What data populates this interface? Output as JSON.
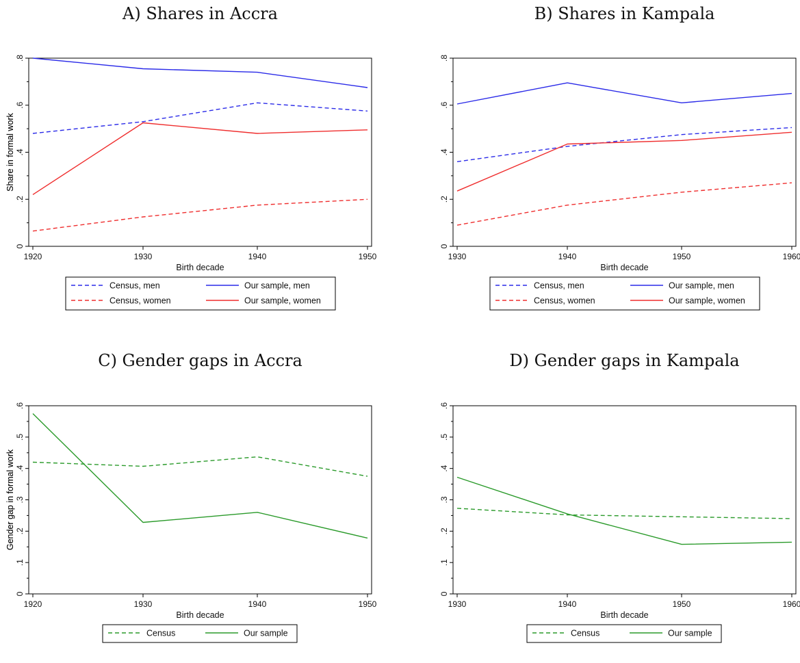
{
  "chart_data": [
    {
      "panel": "A",
      "type": "line",
      "title": "A) Shares in Accra",
      "xlabel": "Birth decade",
      "ylabel": "Share in formal work",
      "x": [
        1920,
        1930,
        1940,
        1950
      ],
      "x_ticks": [
        "1920",
        "1930",
        "1940",
        "1950"
      ],
      "xlim": [
        1920,
        1950
      ],
      "ylim": [
        0,
        0.8
      ],
      "y_ticks": [
        {
          "value": 0,
          "label": "0"
        },
        {
          "value": 0.2,
          "label": ".2"
        },
        {
          "value": 0.4,
          "label": ".4"
        },
        {
          "value": 0.6,
          "label": ".6"
        },
        {
          "value": 0.8,
          "label": ".8"
        }
      ],
      "grid": false,
      "legend_placement": "bottom",
      "series": [
        {
          "name": "Census, men",
          "color": "#2a2ae8",
          "dash": "dashed",
          "values": [
            0.48,
            0.53,
            0.61,
            0.575
          ]
        },
        {
          "name": "Our sample, men",
          "color": "#2a2ae8",
          "dash": "solid",
          "values": [
            0.8,
            0.755,
            0.74,
            0.675
          ]
        },
        {
          "name": "Census, women",
          "color": "#ef2d2d",
          "dash": "dashed",
          "values": [
            0.065,
            0.125,
            0.175,
            0.2
          ]
        },
        {
          "name": "Our sample, women",
          "color": "#ef2d2d",
          "dash": "solid",
          "values": [
            0.22,
            0.525,
            0.48,
            0.495
          ]
        }
      ]
    },
    {
      "panel": "B",
      "type": "line",
      "title": "B) Shares in Kampala",
      "xlabel": "Birth decade",
      "ylabel": "Share in formal work",
      "x": [
        1930,
        1940,
        1950,
        1960
      ],
      "x_ticks": [
        "1930",
        "1940",
        "1950",
        "1960"
      ],
      "xlim": [
        1930,
        1960
      ],
      "ylim": [
        0,
        0.8
      ],
      "y_ticks": [
        {
          "value": 0,
          "label": "0"
        },
        {
          "value": 0.2,
          "label": ".2"
        },
        {
          "value": 0.4,
          "label": ".4"
        },
        {
          "value": 0.6,
          "label": ".6"
        },
        {
          "value": 0.8,
          "label": ".8"
        }
      ],
      "grid": false,
      "legend_placement": "bottom",
      "series": [
        {
          "name": "Census, men",
          "color": "#2a2ae8",
          "dash": "dashed",
          "values": [
            0.36,
            0.425,
            0.475,
            0.505
          ]
        },
        {
          "name": "Our sample, men",
          "color": "#2a2ae8",
          "dash": "solid",
          "values": [
            0.605,
            0.695,
            0.61,
            0.65
          ]
        },
        {
          "name": "Census, women",
          "color": "#ef2d2d",
          "dash": "dashed",
          "values": [
            0.09,
            0.175,
            0.23,
            0.27
          ]
        },
        {
          "name": "Our sample, women",
          "color": "#ef2d2d",
          "dash": "solid",
          "values": [
            0.235,
            0.435,
            0.45,
            0.485
          ]
        }
      ]
    },
    {
      "panel": "C",
      "type": "line",
      "title": "C) Gender gaps in Accra",
      "xlabel": "Birth decade",
      "ylabel": "Gender gap in formal work",
      "x": [
        1920,
        1930,
        1940,
        1950
      ],
      "x_ticks": [
        "1920",
        "1930",
        "1940",
        "1950"
      ],
      "xlim": [
        1920,
        1950
      ],
      "ylim": [
        0,
        0.6
      ],
      "y_ticks": [
        {
          "value": 0,
          "label": "0"
        },
        {
          "value": 0.1,
          "label": ".1"
        },
        {
          "value": 0.2,
          "label": ".2"
        },
        {
          "value": 0.3,
          "label": ".3"
        },
        {
          "value": 0.4,
          "label": ".4"
        },
        {
          "value": 0.5,
          "label": ".5"
        },
        {
          "value": 0.6,
          "label": ".6"
        }
      ],
      "grid": false,
      "legend_placement": "bottom",
      "series": [
        {
          "name": "Census",
          "color": "#2a9a2a",
          "dash": "dashed",
          "values": [
            0.42,
            0.407,
            0.437,
            0.375
          ]
        },
        {
          "name": "Our sample",
          "color": "#2a9a2a",
          "dash": "solid",
          "values": [
            0.575,
            0.228,
            0.26,
            0.178
          ]
        }
      ]
    },
    {
      "panel": "D",
      "type": "line",
      "title": "D) Gender gaps in Kampala",
      "xlabel": "Birth decade",
      "ylabel": "Gender gap in formal work",
      "x": [
        1930,
        1940,
        1950,
        1960
      ],
      "x_ticks": [
        "1930",
        "1940",
        "1950",
        "1960"
      ],
      "xlim": [
        1930,
        1960
      ],
      "ylim": [
        0,
        0.6
      ],
      "y_ticks": [
        {
          "value": 0,
          "label": "0"
        },
        {
          "value": 0.1,
          "label": ".1"
        },
        {
          "value": 0.2,
          "label": ".2"
        },
        {
          "value": 0.3,
          "label": ".3"
        },
        {
          "value": 0.4,
          "label": ".4"
        },
        {
          "value": 0.5,
          "label": ".5"
        },
        {
          "value": 0.6,
          "label": ".6"
        }
      ],
      "grid": false,
      "legend_placement": "bottom",
      "series": [
        {
          "name": "Census",
          "color": "#2a9a2a",
          "dash": "dashed",
          "values": [
            0.273,
            0.252,
            0.246,
            0.24
          ]
        },
        {
          "name": "Our sample",
          "color": "#2a9a2a",
          "dash": "solid",
          "values": [
            0.372,
            0.255,
            0.158,
            0.165
          ]
        }
      ]
    }
  ]
}
